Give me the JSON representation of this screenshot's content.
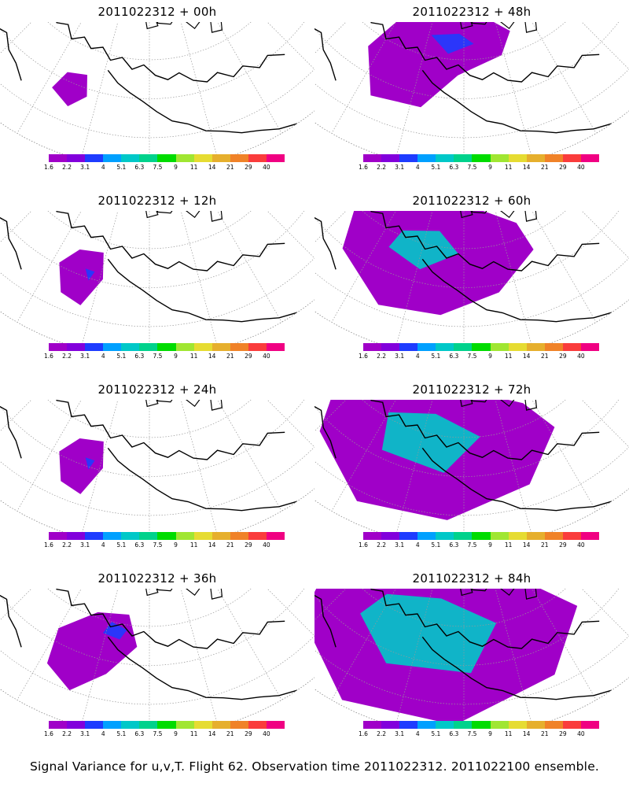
{
  "caption": "Signal Variance for u,v,T. Flight 62. Observation time 2011022312. 2011022100 ensemble.",
  "colorbar": {
    "colors": [
      "#a000c8",
      "#8200dc",
      "#1e3cff",
      "#00a0ff",
      "#00c8c8",
      "#00d28c",
      "#00dc00",
      "#a0e632",
      "#e6dc32",
      "#e6af2d",
      "#f08228",
      "#fa3c3c",
      "#f00082"
    ],
    "labels": [
      "1.6",
      "2.2",
      "3.1",
      "4",
      "5.1",
      "6.3",
      "7.5",
      "9",
      "11",
      "14",
      "21",
      "29",
      "40"
    ]
  },
  "panels": [
    {
      "title": "2011022312 + 00h",
      "variance_level": 0
    },
    {
      "title": "2011022312 + 48h",
      "variance_level": 3
    },
    {
      "title": "2011022312 + 12h",
      "variance_level": 1
    },
    {
      "title": "2011022312 + 60h",
      "variance_level": 4
    },
    {
      "title": "2011022312 + 24h",
      "variance_level": 1
    },
    {
      "title": "2011022312 + 72h",
      "variance_level": 5
    },
    {
      "title": "2011022312 + 36h",
      "variance_level": 2
    },
    {
      "title": "2011022312 + 84h",
      "variance_level": 6
    }
  ]
}
